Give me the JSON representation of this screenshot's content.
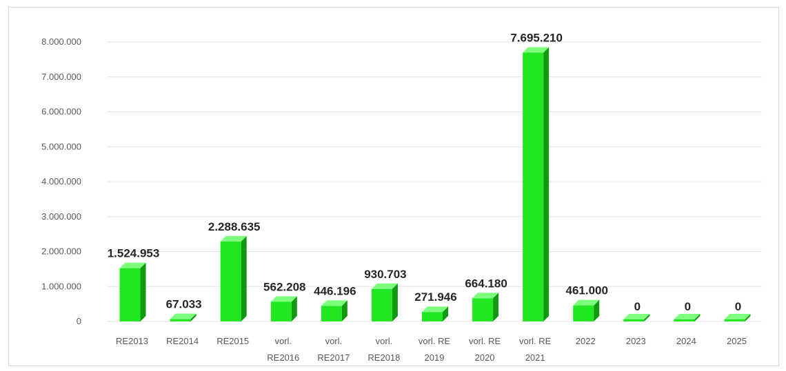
{
  "chart_data": {
    "type": "bar",
    "categories": [
      [
        "RE2013"
      ],
      [
        "RE2014"
      ],
      [
        "RE2015"
      ],
      [
        "vorl.",
        "RE2016"
      ],
      [
        "vorl.",
        "RE2017"
      ],
      [
        "vorl.",
        "RE2018"
      ],
      [
        "vorl. RE",
        "2019"
      ],
      [
        "vorl. RE",
        "2020"
      ],
      [
        "vorl. RE",
        "2021"
      ],
      [
        "2022"
      ],
      [
        "2023"
      ],
      [
        "2024"
      ],
      [
        "2025"
      ]
    ],
    "values": [
      1524953,
      67033,
      2288635,
      562208,
      446196,
      930703,
      271946,
      664180,
      7695210,
      461000,
      0,
      0,
      0
    ],
    "data_labels": [
      "1.524.953",
      "67.033",
      "2.288.635",
      "562.208",
      "446.196",
      "930.703",
      "271.946",
      "664.180",
      "7.695.210",
      "461.000",
      "0",
      "0",
      "0"
    ],
    "y_ticks": [
      0,
      1000000,
      2000000,
      3000000,
      4000000,
      5000000,
      6000000,
      7000000,
      8000000
    ],
    "y_tick_labels": [
      "0",
      "1.000.000",
      "2.000.000",
      "3.000.000",
      "4.000.000",
      "5.000.000",
      "6.000.000",
      "7.000.000",
      "8.000.000"
    ],
    "ylim": [
      0,
      8000000
    ],
    "title": "",
    "xlabel": "",
    "ylabel": "",
    "grid": true,
    "legend": "none",
    "style": "3d-column",
    "colors": {
      "bar_front": "#22e622",
      "bar_side": "#119911",
      "bar_top": "#7dff7d",
      "gridline": "#e3e3e3"
    }
  }
}
